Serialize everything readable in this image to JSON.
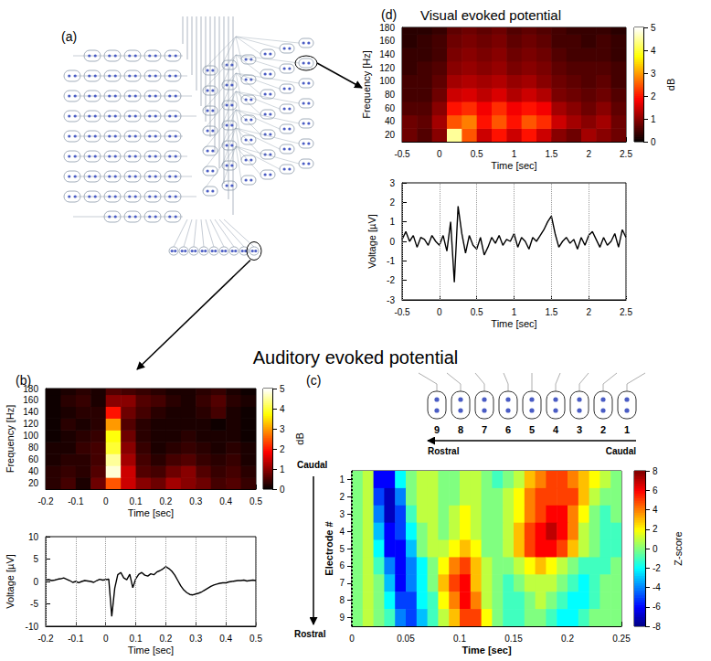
{
  "diagram": {
    "panel": "(a)"
  },
  "figure_title": "Auditory evoked potential",
  "electrode_strip": {
    "labels": [
      "9",
      "8",
      "7",
      "6",
      "5",
      "4",
      "3",
      "2",
      "1"
    ],
    "rostral": "Rostral",
    "caudal": "Caudal"
  },
  "chart_data": [
    {
      "type": "heatmap",
      "panel": "(d)",
      "title": "Visual evoked potential",
      "x_label": "Time [sec]",
      "y_label": "Frequency [Hz]",
      "xlim": [
        -0.5,
        2.5
      ],
      "xticks": [
        -0.5,
        0,
        0.5,
        1,
        1.5,
        2,
        2.5
      ],
      "ylim": [
        10,
        180
      ],
      "yticks": [
        20,
        40,
        60,
        80,
        100,
        120,
        140,
        160,
        180
      ],
      "x_edges": [
        -0.5,
        -0.3,
        -0.1,
        0.1,
        0.3,
        0.5,
        0.7,
        0.9,
        1.1,
        1.3,
        1.5,
        1.7,
        1.9,
        2.1,
        2.3,
        2.5
      ],
      "y_edges": [
        10,
        30,
        50,
        70,
        90,
        110,
        130,
        150,
        170,
        180
      ],
      "cells": [
        [
          0.8,
          0.6,
          1.0,
          4.5,
          2.5,
          1.5,
          2.0,
          1.5,
          2.0,
          1.5,
          1.0,
          0.8,
          1.2,
          1.0,
          0.8
        ],
        [
          0.8,
          0.7,
          1.2,
          2.5,
          2.8,
          2.0,
          2.5,
          2.0,
          2.5,
          2.2,
          1.5,
          1.2,
          1.0,
          1.2,
          0.8
        ],
        [
          0.6,
          0.6,
          1.0,
          2.0,
          2.2,
          1.8,
          2.2,
          1.8,
          2.0,
          1.8,
          1.2,
          1.0,
          0.8,
          1.0,
          0.7
        ],
        [
          0.5,
          0.5,
          0.8,
          1.5,
          1.6,
          1.4,
          1.6,
          1.3,
          1.5,
          1.3,
          0.9,
          0.8,
          0.7,
          0.8,
          0.6
        ],
        [
          0.5,
          0.5,
          0.7,
          1.2,
          1.3,
          1.2,
          1.3,
          1.1,
          1.2,
          1.0,
          0.8,
          0.7,
          0.6,
          0.7,
          0.5
        ],
        [
          0.4,
          0.5,
          0.6,
          1.0,
          1.1,
          1.0,
          1.1,
          0.9,
          1.0,
          0.9,
          0.7,
          0.6,
          0.6,
          0.6,
          0.5
        ],
        [
          0.4,
          0.4,
          0.5,
          0.9,
          1.0,
          0.9,
          1.0,
          0.8,
          0.9,
          0.8,
          0.6,
          0.5,
          0.5,
          0.5,
          0.4
        ],
        [
          0.3,
          0.4,
          0.5,
          0.8,
          0.9,
          0.8,
          0.9,
          0.7,
          0.8,
          0.7,
          0.5,
          0.5,
          0.4,
          0.5,
          0.4
        ],
        [
          0.3,
          0.3,
          0.4,
          0.7,
          0.8,
          0.7,
          0.8,
          0.6,
          0.7,
          0.6,
          0.5,
          0.4,
          0.4,
          0.4,
          0.3
        ]
      ],
      "colorbar": {
        "label": "dB",
        "range": [
          0,
          5
        ],
        "ticks": [
          0,
          1,
          2,
          3,
          4,
          5
        ]
      }
    },
    {
      "type": "line",
      "x_label": "Time [sec]",
      "y_label": "Voltage [µV]",
      "grid": true,
      "color": "#000000",
      "xlim": [
        -0.5,
        2.5
      ],
      "xticks": [
        -0.5,
        0,
        0.5,
        1,
        1.5,
        2,
        2.5
      ],
      "ylim": [
        -3,
        3
      ],
      "yticks": [
        -3,
        -2,
        -1,
        0,
        1,
        2,
        3
      ],
      "x": [
        -0.5,
        -0.45,
        -0.4,
        -0.35,
        -0.3,
        -0.25,
        -0.2,
        -0.15,
        -0.1,
        -0.05,
        0,
        0.05,
        0.1,
        0.15,
        0.2,
        0.25,
        0.3,
        0.35,
        0.4,
        0.45,
        0.5,
        0.55,
        0.6,
        0.65,
        0.7,
        0.75,
        0.8,
        0.85,
        0.9,
        0.95,
        1,
        1.05,
        1.1,
        1.15,
        1.2,
        1.25,
        1.3,
        1.35,
        1.4,
        1.45,
        1.5,
        1.55,
        1.6,
        1.65,
        1.7,
        1.75,
        1.8,
        1.85,
        1.9,
        1.95,
        2,
        2.05,
        2.1,
        2.15,
        2.2,
        2.25,
        2.3,
        2.35,
        2.4,
        2.45,
        2.5
      ],
      "values": [
        0.1,
        0.5,
        0,
        0.3,
        -0.3,
        0.2,
        0.1,
        -0.2,
        0.3,
        0,
        -0.2,
        0.3,
        -0.5,
        1,
        -2.1,
        1.8,
        0.4,
        -0.6,
        0.3,
        -0.2,
        -0.4,
        0.2,
        -0.7,
        -0.3,
        0.2,
        -0.1,
        0.3,
        -0.2,
        0.1,
        0,
        0.4,
        -0.3,
        0.2,
        0,
        -0.4,
        0.2,
        0,
        0.3,
        0.6,
        1,
        1.3,
        0.4,
        -0.3,
        0,
        0.2,
        -0.1,
        0.1,
        -0.4,
        0.2,
        -0.2,
        0.3,
        0.5,
        0.1,
        -0.3,
        0.2,
        -0.2,
        0,
        0.4,
        -0.3,
        0.6,
        0.2
      ]
    },
    {
      "type": "heatmap",
      "panel": "(b)",
      "x_label": "Time [sec]",
      "y_label": "Frequency [Hz]",
      "xlim": [
        -0.2,
        0.5
      ],
      "xticks": [
        -0.2,
        -0.1,
        0,
        0.1,
        0.2,
        0.3,
        0.4,
        0.5
      ],
      "ylim": [
        10,
        180
      ],
      "yticks": [
        20,
        40,
        60,
        80,
        100,
        120,
        140,
        160,
        180
      ],
      "x_edges": [
        -0.2,
        -0.15,
        -0.1,
        -0.05,
        0,
        0.05,
        0.1,
        0.15,
        0.2,
        0.25,
        0.3,
        0.35,
        0.4,
        0.45,
        0.5
      ],
      "y_edges": [
        10,
        30,
        50,
        70,
        90,
        110,
        130,
        150,
        170,
        180
      ],
      "cells": [
        [
          0.3,
          0.5,
          0.2,
          0.8,
          2.5,
          1.5,
          1.0,
          0.8,
          1.2,
          1.0,
          0.8,
          0.5,
          0.6,
          0.4
        ],
        [
          0.3,
          0.4,
          0.3,
          0.6,
          4.8,
          1.5,
          0.6,
          0.5,
          0.8,
          1.0,
          0.6,
          0.4,
          0.5,
          0.3
        ],
        [
          0.2,
          0.3,
          0.3,
          0.5,
          4.5,
          1.2,
          0.5,
          0.3,
          0.5,
          0.6,
          0.4,
          0.3,
          0.4,
          0.2
        ],
        [
          0.2,
          0.2,
          0.4,
          0.5,
          4.0,
          1.0,
          0.4,
          0.2,
          0.3,
          0.4,
          0.3,
          0.2,
          0.3,
          0.2
        ],
        [
          0.1,
          0.2,
          0.3,
          0.4,
          3.8,
          0.8,
          0.3,
          0.2,
          0.2,
          0.3,
          0.2,
          0.2,
          0.2,
          0.1
        ],
        [
          0.1,
          0.3,
          0.2,
          0.3,
          3.0,
          0.6,
          0.3,
          0.2,
          0.2,
          0.2,
          0.2,
          0.1,
          0.2,
          0.1
        ],
        [
          0.1,
          0.2,
          0.3,
          0.3,
          2.0,
          0.8,
          0.5,
          0.3,
          0.2,
          0.2,
          0.3,
          0.5,
          0.2,
          0.1
        ],
        [
          0.1,
          0.3,
          0.4,
          0.2,
          1.0,
          1.0,
          0.6,
          0.5,
          0.3,
          0.2,
          0.4,
          0.6,
          0.3,
          0.2
        ],
        [
          0.1,
          0.2,
          0.3,
          0.2,
          0.6,
          0.5,
          0.4,
          0.3,
          0.2,
          0.2,
          0.3,
          0.4,
          0.2,
          0.1
        ]
      ],
      "colorbar": {
        "label": "dB",
        "range": [
          0,
          5
        ],
        "ticks": [
          0,
          1,
          2,
          3,
          4,
          5
        ]
      }
    },
    {
      "type": "line",
      "x_label": "Time [sec]",
      "y_label": "Voltage [µV]",
      "grid": true,
      "color": "#000000",
      "xlim": [
        -0.2,
        0.5
      ],
      "xticks": [
        -0.2,
        -0.1,
        0,
        0.1,
        0.2,
        0.3,
        0.4,
        0.5
      ],
      "ylim": [
        -10,
        10
      ],
      "yticks": [
        -10,
        -5,
        0,
        5,
        10
      ],
      "x": [
        -0.2,
        -0.19,
        -0.18,
        -0.17,
        -0.16,
        -0.15,
        -0.14,
        -0.13,
        -0.12,
        -0.11,
        -0.1,
        -0.09,
        -0.08,
        -0.07,
        -0.06,
        -0.05,
        -0.04,
        -0.03,
        -0.02,
        -0.01,
        0,
        0.01,
        0.02,
        0.03,
        0.04,
        0.05,
        0.06,
        0.07,
        0.08,
        0.09,
        0.1,
        0.11,
        0.12,
        0.13,
        0.14,
        0.15,
        0.16,
        0.17,
        0.18,
        0.19,
        0.2,
        0.21,
        0.22,
        0.23,
        0.24,
        0.25,
        0.26,
        0.27,
        0.28,
        0.29,
        0.3,
        0.31,
        0.32,
        0.33,
        0.34,
        0.35,
        0.36,
        0.37,
        0.38,
        0.39,
        0.4,
        0.41,
        0.42,
        0.43,
        0.44,
        0.45,
        0.46,
        0.47,
        0.48,
        0.49,
        0.5
      ],
      "values": [
        0.3,
        0.4,
        0.2,
        0.3,
        0.5,
        0.6,
        0.8,
        0.5,
        0.2,
        -0.2,
        0,
        -0.3,
        0,
        0.2,
        0.1,
        0,
        -0.2,
        0.2,
        0.5,
        0.3,
        0.4,
        0.5,
        -7.8,
        -1.5,
        1.5,
        2,
        0.8,
        0.4,
        1.6,
        -1.4,
        0.6,
        1.6,
        2,
        1.4,
        1.2,
        1.7,
        1.5,
        2.1,
        2.4,
        2.8,
        3.3,
        2.9,
        2.3,
        1.4,
        0.2,
        -1,
        -1.9,
        -2.5,
        -2.9,
        -3,
        -2.8,
        -2.6,
        -2.3,
        -1.9,
        -1.5,
        -1.1,
        -0.8,
        -0.6,
        -0.4,
        -0.3,
        -0.3,
        -0.1,
        0,
        0.1,
        0.2,
        0.2,
        0.3,
        0.1,
        0.2,
        0.3,
        0.2
      ]
    },
    {
      "type": "heatmap",
      "panel": "(c)",
      "x_label": "Time [sec]",
      "y_label": "Electrode #",
      "y_top_label": "Caudal",
      "y_bottom_label": "Rostral",
      "xlim": [
        0,
        0.25
      ],
      "xticks": [
        0,
        0.05,
        0.1,
        0.15,
        0.2,
        0.25
      ],
      "onset": 0,
      "categories": [
        "1",
        "2",
        "3",
        "4",
        "5",
        "6",
        "7",
        "8",
        "9"
      ],
      "x_edges": [
        0,
        0.01,
        0.02,
        0.03,
        0.04,
        0.05,
        0.06,
        0.07,
        0.08,
        0.09,
        0.1,
        0.11,
        0.12,
        0.13,
        0.14,
        0.15,
        0.16,
        0.17,
        0.18,
        0.19,
        0.2,
        0.21,
        0.22,
        0.23,
        0.24,
        0.25
      ],
      "cells": [
        [
          0,
          1,
          -6,
          -6,
          -2,
          0,
          1,
          1,
          0,
          0,
          1,
          1,
          0,
          -1,
          0,
          1,
          3,
          4,
          5,
          5,
          4,
          3,
          2,
          1,
          0
        ],
        [
          0,
          1,
          -5,
          -7,
          -4,
          0,
          1,
          1,
          0,
          0,
          1,
          1,
          0,
          0,
          1,
          2,
          4,
          5,
          5,
          5,
          5,
          3,
          1,
          0,
          0
        ],
        [
          0,
          1,
          -4,
          -7,
          -5,
          -1,
          1,
          1,
          0,
          1,
          2,
          1,
          0,
          0,
          1,
          2,
          4,
          5,
          6,
          6,
          4,
          2,
          0,
          -1,
          0
        ],
        [
          0,
          1,
          -3,
          -6,
          -5,
          -2,
          0,
          1,
          0,
          1,
          2,
          1,
          0,
          0,
          1,
          3,
          5,
          6,
          7,
          6,
          4,
          1,
          0,
          -1,
          -1
        ],
        [
          0,
          1,
          -2,
          -6,
          -6,
          -3,
          0,
          1,
          1,
          2,
          3,
          2,
          0,
          0,
          1,
          3,
          5,
          6,
          6,
          5,
          3,
          1,
          0,
          -1,
          -1
        ],
        [
          0,
          1,
          -1,
          -4,
          -6,
          -4,
          -2,
          0,
          2,
          4,
          5,
          3,
          1,
          0,
          0,
          1,
          2,
          3,
          2,
          1,
          0,
          -1,
          -1,
          -1,
          0
        ],
        [
          0,
          1,
          0,
          -3,
          -6,
          -4,
          -2,
          0,
          3,
          5,
          6,
          3,
          1,
          0,
          -1,
          0,
          1,
          1,
          1,
          0,
          -1,
          -2,
          -1,
          0,
          0
        ],
        [
          0,
          1,
          0,
          -2,
          -5,
          -5,
          -2,
          -1,
          2,
          4,
          6,
          4,
          1,
          0,
          -1,
          -1,
          0,
          1,
          0,
          -1,
          -2,
          -2,
          -1,
          0,
          0
        ],
        [
          0,
          1,
          0,
          -1,
          -4,
          -5,
          -3,
          -1,
          1,
          3,
          5,
          5,
          2,
          0,
          -1,
          -1,
          0,
          0,
          -1,
          -2,
          -2,
          -1,
          0,
          0,
          0
        ]
      ],
      "colorbar": {
        "label": "Z-score",
        "range": [
          -8,
          8
        ],
        "ticks": [
          -8,
          -6,
          -4,
          -2,
          0,
          2,
          4,
          6,
          8
        ]
      }
    }
  ]
}
